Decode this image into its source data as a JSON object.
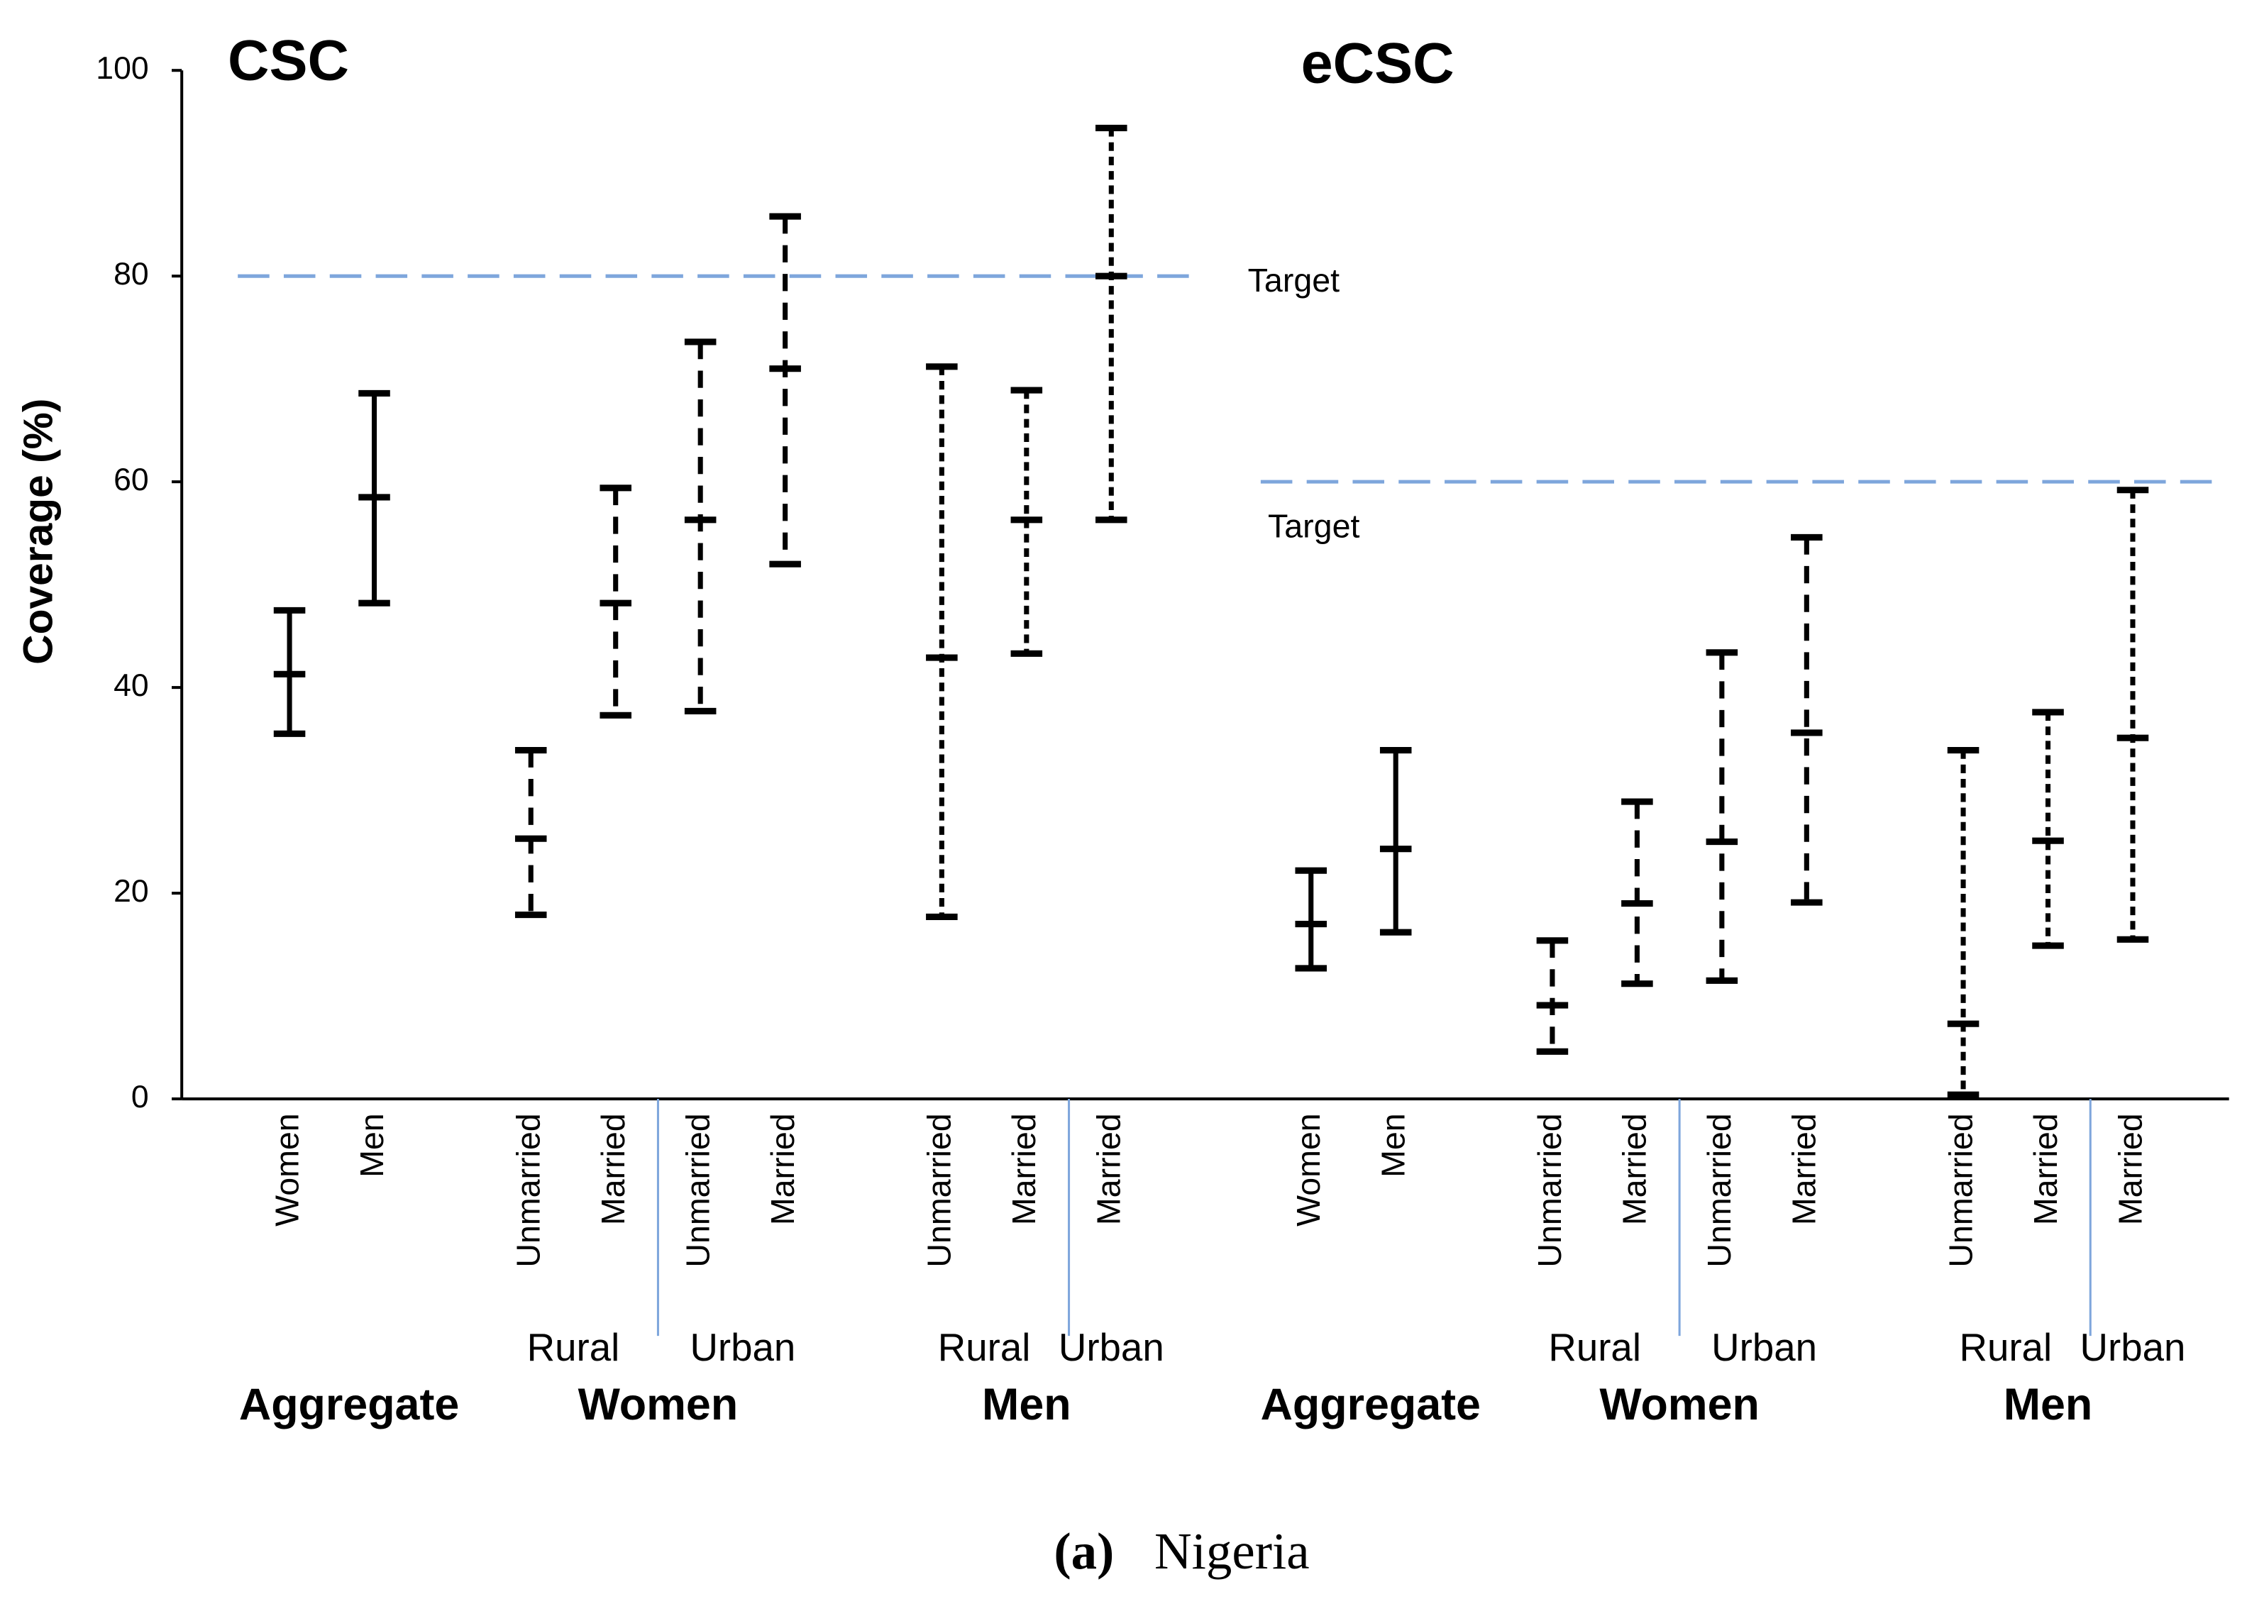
{
  "chart_data": {
    "type": "errorbar",
    "ylabel": "Coverage (%)",
    "ylim": [
      0,
      100
    ],
    "yticks": [
      0,
      20,
      40,
      60,
      80,
      100
    ],
    "color": "#000000",
    "target_color": "#7ea6dc",
    "caption": {
      "label": "(a)",
      "text": "Nigeria"
    },
    "panels": [
      {
        "title": "CSC",
        "target": 80,
        "target_label": "Target",
        "groups": [
          {
            "name": "Aggregate",
            "style": "solid",
            "subgroups": [
              {
                "categories": [
                  "Women",
                  "Men"
                ],
                "high": [
                  47.5,
                  68.6
                ],
                "mid": [
                  41.3,
                  58.5
                ],
                "low": [
                  35.5,
                  48.2
                ]
              }
            ]
          },
          {
            "name": "Women",
            "style": "dashed",
            "subgroups": [
              {
                "name": "Rural",
                "categories": [
                  "Unmarried",
                  "Married"
                ],
                "high": [
                  33.9,
                  59.4
                ],
                "mid": [
                  25.3,
                  48.2
                ],
                "low": [
                  17.9,
                  37.3
                ]
              },
              {
                "name": "Urban",
                "categories": [
                  "Unmarried",
                  "Married"
                ],
                "high": [
                  73.6,
                  85.8
                ],
                "mid": [
                  56.3,
                  71.0
                ],
                "low": [
                  37.7,
                  52.0
                ]
              }
            ]
          },
          {
            "name": "Men",
            "style": "dotted",
            "subgroups": [
              {
                "name": "Rural",
                "categories": [
                  "Unmarried",
                  "Married"
                ],
                "high": [
                  71.2,
                  68.9
                ],
                "mid": [
                  42.9,
                  56.3
                ],
                "low": [
                  17.7,
                  43.3
                ]
              },
              {
                "name": "Urban",
                "categories": [
                  "Married"
                ],
                "high": [
                  94.4
                ],
                "mid": [
                  80.0
                ],
                "low": [
                  56.3
                ]
              }
            ]
          }
        ]
      },
      {
        "title": "eCSC",
        "target": 60,
        "target_label": "Target",
        "groups": [
          {
            "name": "Aggregate",
            "style": "solid",
            "subgroups": [
              {
                "categories": [
                  "Women",
                  "Men"
                ],
                "high": [
                  22.2,
                  33.9
                ],
                "mid": [
                  17.0,
                  24.3
                ],
                "low": [
                  12.7,
                  16.2
                ]
              }
            ]
          },
          {
            "name": "Women",
            "style": "dashed",
            "subgroups": [
              {
                "name": "Rural",
                "categories": [
                  "Unmarried",
                  "Married"
                ],
                "high": [
                  15.4,
                  28.9
                ],
                "mid": [
                  9.1,
                  19.0
                ],
                "low": [
                  4.6,
                  11.2
                ]
              },
              {
                "name": "Urban",
                "categories": [
                  "Unmarried",
                  "Married"
                ],
                "high": [
                  43.4,
                  54.6
                ],
                "mid": [
                  25.0,
                  35.6
                ],
                "low": [
                  11.5,
                  19.1
                ]
              }
            ]
          },
          {
            "name": "Men",
            "style": "dotted",
            "subgroups": [
              {
                "name": "Rural",
                "categories": [
                  "Unmarried",
                  "Married"
                ],
                "high": [
                  33.9,
                  37.6
                ],
                "mid": [
                  7.3,
                  25.1
                ],
                "low": [
                  0.4,
                  14.9
                ]
              },
              {
                "name": "Urban",
                "categories": [
                  "Married"
                ],
                "high": [
                  59.2
                ],
                "mid": [
                  35.1
                ],
                "low": [
                  15.5
                ]
              }
            ]
          }
        ]
      }
    ]
  }
}
